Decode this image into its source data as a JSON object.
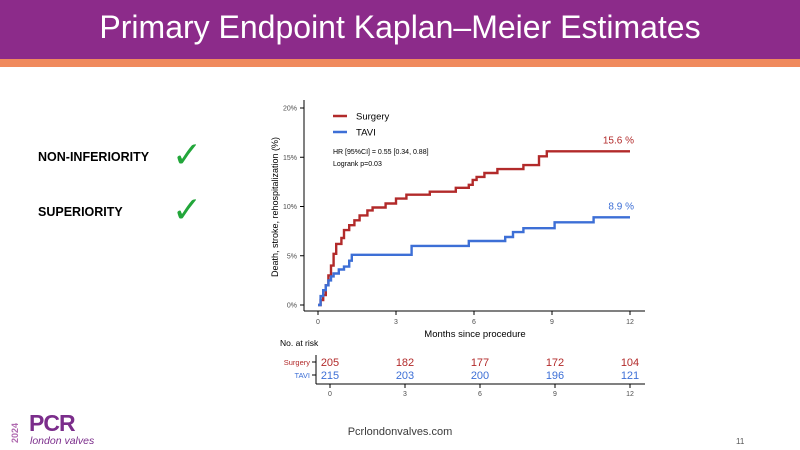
{
  "slide": {
    "title": "Primary Endpoint Kaplan–Meier Estimates",
    "criteria": [
      {
        "label": "NON-INFERIORITY",
        "met": true
      },
      {
        "label": "SUPERIORITY",
        "met": true
      }
    ],
    "checkmark_glyph": "✓",
    "footer_url": "Pcrlondonvalves.com",
    "page_number": "11",
    "logo": {
      "year": "2024",
      "brand": "PCR",
      "subtitle": "london valves"
    },
    "colors": {
      "title_bar": "#8c2b8a",
      "accent_bar": "#f08a5d",
      "check": "#22a63a"
    }
  },
  "chart_data": {
    "type": "line",
    "step": true,
    "xlabel": "Months since procedure",
    "ylabel": "Death, stroke, rehospitalization (%)",
    "xlim": [
      0,
      12
    ],
    "ylim": [
      0,
      20
    ],
    "xticks": [
      "0",
      "3",
      "6",
      "9",
      "12"
    ],
    "yticks": [
      "0%",
      "5%",
      "10%",
      "15%",
      "20%"
    ],
    "grid": false,
    "legend_position": "top-left",
    "annotation": {
      "hr": "HR [95%CI] = 0.55 [0.34, 0.88]",
      "logrank": "Logrank p=0.03"
    },
    "series": [
      {
        "name": "Surgery",
        "color": "#b22a2a",
        "end_label": "15.6 %",
        "points": [
          [
            0,
            0
          ],
          [
            0.1,
            0.5
          ],
          [
            0.2,
            1.0
          ],
          [
            0.3,
            2.0
          ],
          [
            0.4,
            3.0
          ],
          [
            0.5,
            4.0
          ],
          [
            0.6,
            5.2
          ],
          [
            0.7,
            6.2
          ],
          [
            0.9,
            6.8
          ],
          [
            1.0,
            7.6
          ],
          [
            1.2,
            8.1
          ],
          [
            1.4,
            8.6
          ],
          [
            1.6,
            9.1
          ],
          [
            1.9,
            9.6
          ],
          [
            2.1,
            9.9
          ],
          [
            2.6,
            10.3
          ],
          [
            3.0,
            10.8
          ],
          [
            3.4,
            11.2
          ],
          [
            4.3,
            11.5
          ],
          [
            5.3,
            11.9
          ],
          [
            5.8,
            12.2
          ],
          [
            5.95,
            12.7
          ],
          [
            6.1,
            13.0
          ],
          [
            6.4,
            13.4
          ],
          [
            6.9,
            13.8
          ],
          [
            7.9,
            14.2
          ],
          [
            8.5,
            15.1
          ],
          [
            8.8,
            15.6
          ],
          [
            12,
            15.6
          ]
        ]
      },
      {
        "name": "TAVI",
        "color": "#3d6fd6",
        "end_label": "8.9 %",
        "points": [
          [
            0,
            0
          ],
          [
            0.1,
            0.9
          ],
          [
            0.2,
            1.5
          ],
          [
            0.3,
            2.0
          ],
          [
            0.4,
            2.5
          ],
          [
            0.5,
            2.9
          ],
          [
            0.6,
            3.2
          ],
          [
            0.8,
            3.6
          ],
          [
            1.0,
            3.9
          ],
          [
            1.2,
            4.5
          ],
          [
            1.3,
            5.1
          ],
          [
            3.6,
            6.0
          ],
          [
            5.8,
            6.5
          ],
          [
            7.2,
            6.9
          ],
          [
            7.5,
            7.4
          ],
          [
            7.9,
            7.8
          ],
          [
            9.1,
            8.4
          ],
          [
            10.6,
            8.9
          ],
          [
            12,
            8.9
          ]
        ]
      }
    ],
    "risk_table": {
      "title": "No. at risk",
      "times": [
        0,
        3,
        6,
        9,
        12
      ],
      "rows": [
        {
          "label": "Surgery",
          "values": [
            "205",
            "182",
            "177",
            "172",
            "104"
          ],
          "color": "#b22a2a"
        },
        {
          "label": "TAVI",
          "values": [
            "215",
            "203",
            "200",
            "196",
            "121"
          ],
          "color": "#3d6fd6"
        }
      ]
    }
  }
}
